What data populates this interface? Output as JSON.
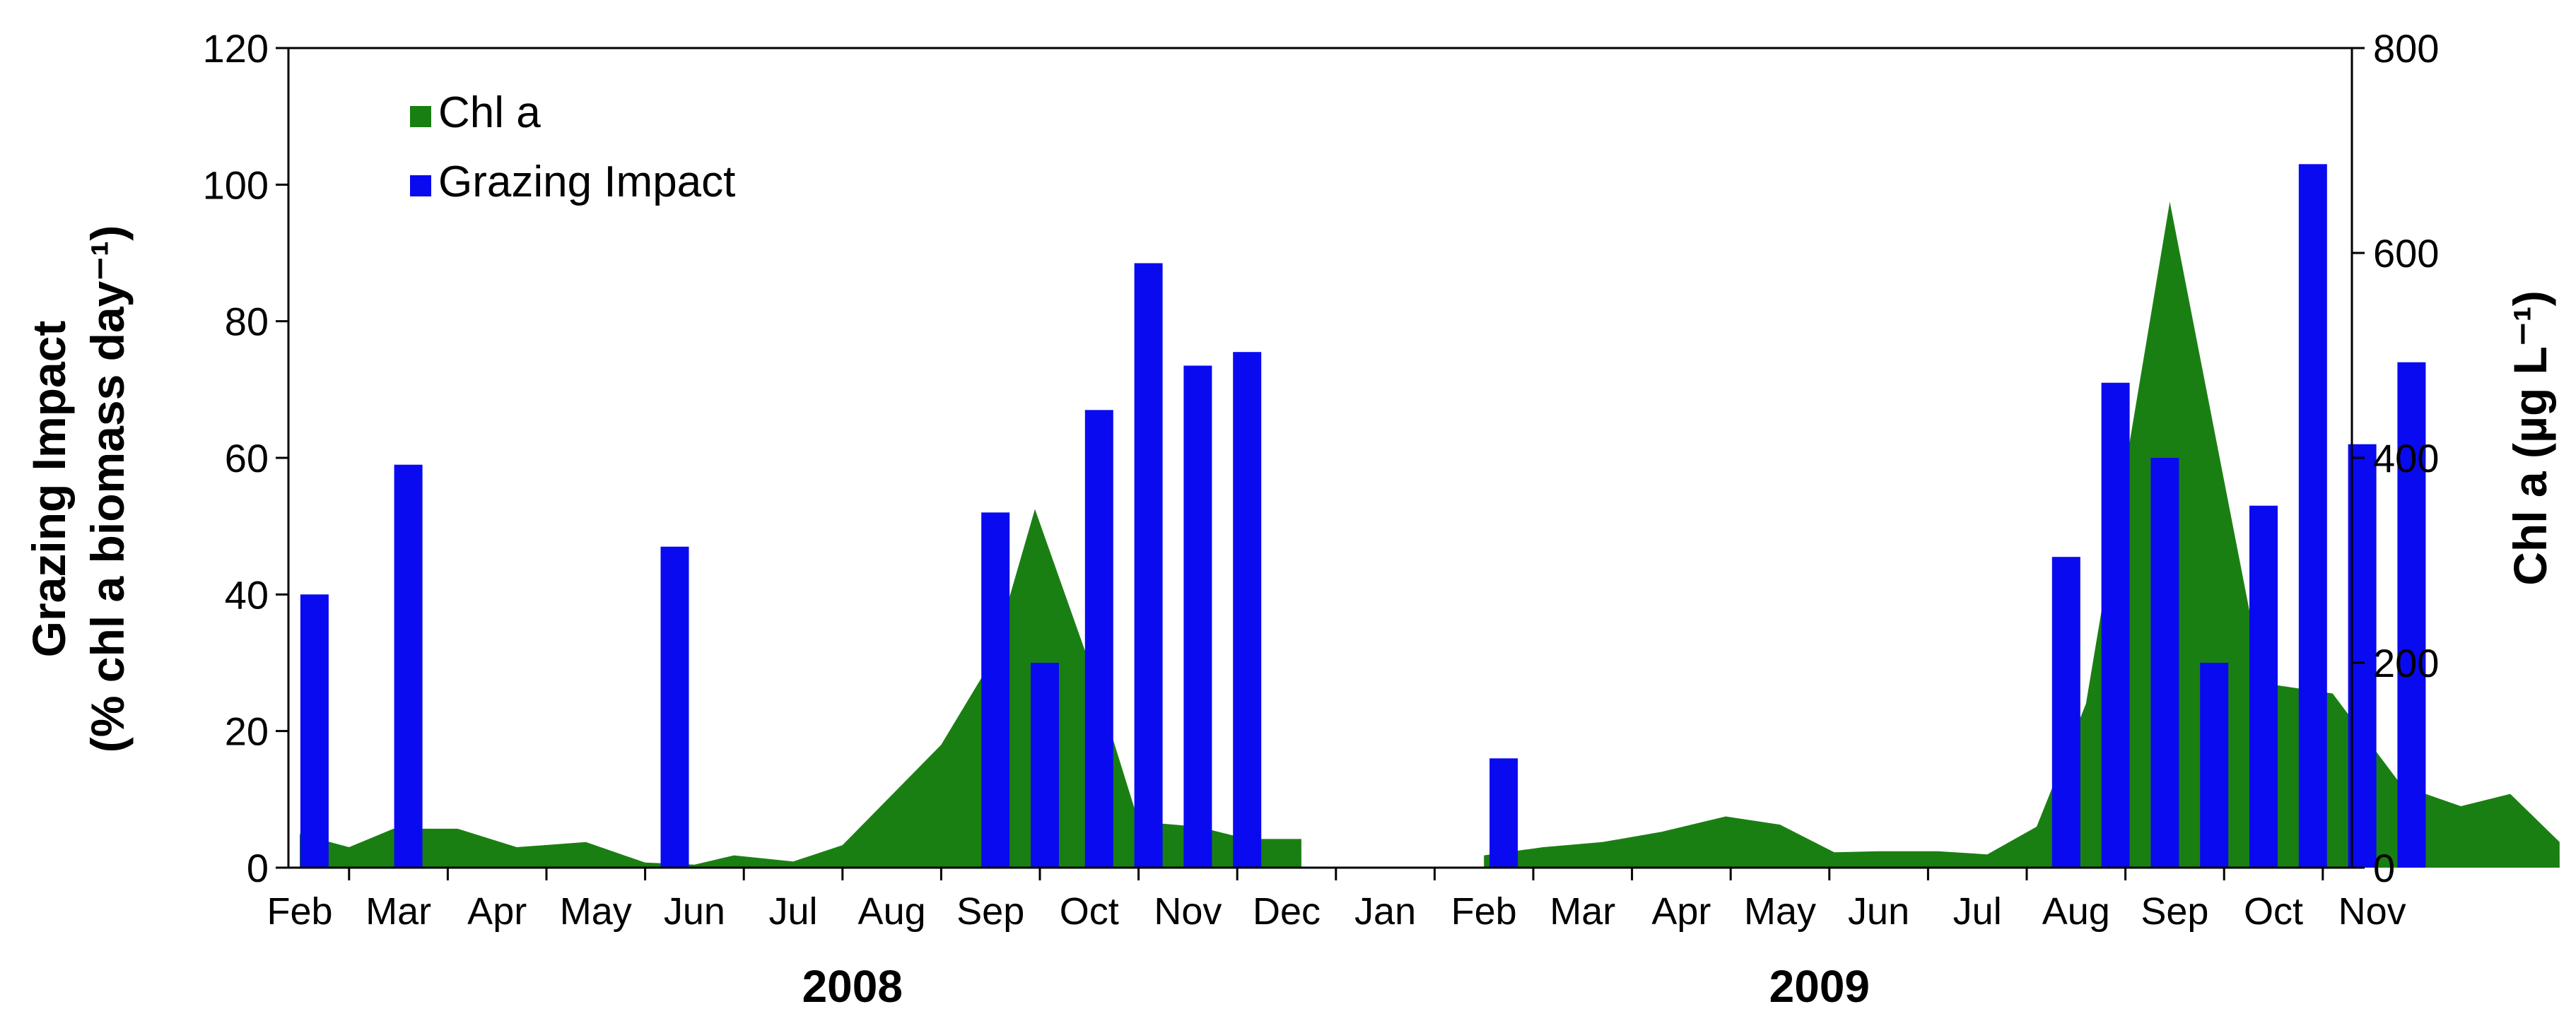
{
  "chart_data": {
    "type": "bar+area",
    "title": "",
    "x_months": [
      "Feb",
      "Mar",
      "Apr",
      "May",
      "Jun",
      "Jul",
      "Aug",
      "Sep",
      "Oct",
      "Nov",
      "Dec",
      "Jan",
      "Feb",
      "Mar",
      "Apr",
      "May",
      "Jun",
      "Jul",
      "Aug",
      "Sep",
      "Oct",
      "Nov"
    ],
    "year_labels": [
      {
        "label": "2008",
        "center_month_index": 5.6
      },
      {
        "label": "2009",
        "center_month_index": 15.4
      }
    ],
    "left_axis": {
      "title_line1": "Grazing Impact",
      "title_line2": "(% chl a biomass day⁻¹)",
      "ylim": [
        0,
        120
      ],
      "ticks": [
        0,
        20,
        40,
        60,
        80,
        100,
        120
      ]
    },
    "right_axis": {
      "title": "Chl a (µg L⁻¹)",
      "ylim": [
        0,
        800
      ],
      "ticks": [
        0,
        200,
        400,
        600,
        800
      ]
    },
    "legend": {
      "position": "top-left",
      "items": [
        {
          "label": "Chl a",
          "color": "#1a7f12"
        },
        {
          "label": "Grazing Impact",
          "color": "#0a0af0"
        }
      ]
    },
    "series": [
      {
        "name": "Chl a",
        "type": "area",
        "axis": "right",
        "color": "#1a7f12",
        "points": [
          {
            "x": 0.0,
            "y": 33
          },
          {
            "x": 0.5,
            "y": 20
          },
          {
            "x": 0.95,
            "y": 38
          },
          {
            "x": 1.6,
            "y": 38
          },
          {
            "x": 2.2,
            "y": 20
          },
          {
            "x": 2.9,
            "y": 25
          },
          {
            "x": 3.5,
            "y": 5
          },
          {
            "x": 4.0,
            "y": 3
          },
          {
            "x": 4.4,
            "y": 12
          },
          {
            "x": 5.0,
            "y": 6
          },
          {
            "x": 5.5,
            "y": 22
          },
          {
            "x": 6.5,
            "y": 120
          },
          {
            "x": 7.0,
            "y": 200
          },
          {
            "x": 7.45,
            "y": 350
          },
          {
            "x": 8.0,
            "y": 200
          },
          {
            "x": 8.5,
            "y": 45
          },
          {
            "x": 9.1,
            "y": 40
          },
          {
            "x": 9.6,
            "y": 28
          },
          {
            "x": 10.15,
            "y": 28
          },
          {
            "x": 12.0,
            "y": 12
          },
          {
            "x": 12.6,
            "y": 20
          },
          {
            "x": 13.2,
            "y": 25
          },
          {
            "x": 13.8,
            "y": 35
          },
          {
            "x": 14.45,
            "y": 50
          },
          {
            "x": 15.0,
            "y": 42
          },
          {
            "x": 15.55,
            "y": 15
          },
          {
            "x": 16.0,
            "y": 16
          },
          {
            "x": 16.6,
            "y": 16
          },
          {
            "x": 17.1,
            "y": 13
          },
          {
            "x": 17.6,
            "y": 40
          },
          {
            "x": 18.1,
            "y": 160
          },
          {
            "x": 18.95,
            "y": 650
          },
          {
            "x": 19.9,
            "y": 180
          },
          {
            "x": 20.6,
            "y": 170
          },
          {
            "x": 21.3,
            "y": 80
          },
          {
            "x": 21.9,
            "y": 60
          },
          {
            "x": 22.4,
            "y": 72
          },
          {
            "x": 22.9,
            "y": 25
          }
        ]
      },
      {
        "name": "Grazing Impact",
        "type": "bar",
        "axis": "left",
        "color": "#0a0af0",
        "points": [
          {
            "x": 0.15,
            "y": 40
          },
          {
            "x": 1.1,
            "y": 59
          },
          {
            "x": 3.8,
            "y": 47
          },
          {
            "x": 7.05,
            "y": 52
          },
          {
            "x": 7.55,
            "y": 30
          },
          {
            "x": 8.1,
            "y": 67
          },
          {
            "x": 8.6,
            "y": 88.5
          },
          {
            "x": 9.1,
            "y": 73.5
          },
          {
            "x": 9.6,
            "y": 75.5
          },
          {
            "x": 12.2,
            "y": 16
          },
          {
            "x": 17.9,
            "y": 45.5
          },
          {
            "x": 18.4,
            "y": 71
          },
          {
            "x": 18.9,
            "y": 60
          },
          {
            "x": 19.4,
            "y": 30
          },
          {
            "x": 19.9,
            "y": 53
          },
          {
            "x": 20.4,
            "y": 103
          },
          {
            "x": 20.9,
            "y": 62
          },
          {
            "x": 21.4,
            "y": 74
          }
        ]
      }
    ]
  }
}
